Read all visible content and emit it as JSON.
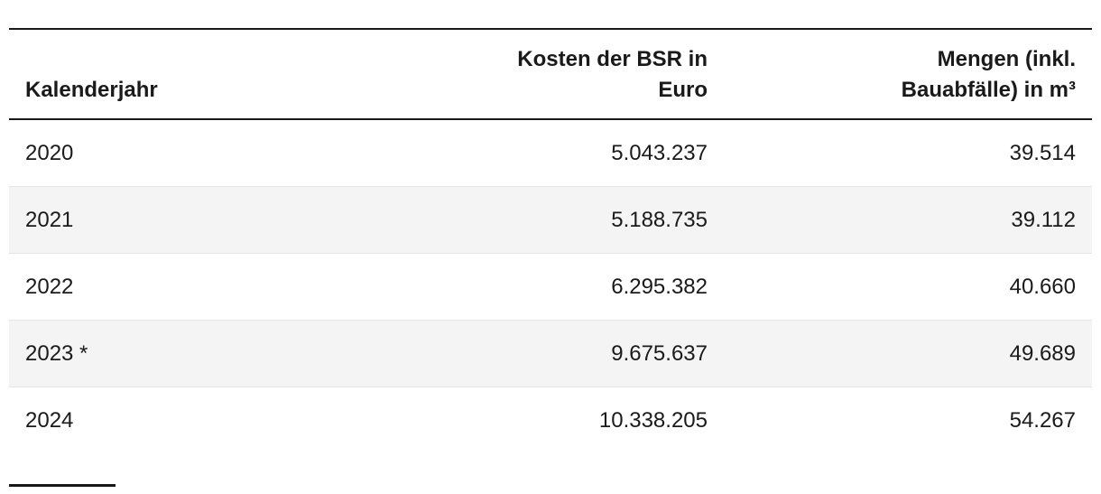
{
  "table": {
    "columns": [
      {
        "label": "Kalenderjahr",
        "align": "left"
      },
      {
        "label": "Kosten der BSR in\nEuro",
        "align": "right"
      },
      {
        "label": "Mengen (inkl.\nBauabfälle) in m³",
        "align": "right"
      }
    ],
    "rows": [
      [
        "2020",
        "5.043.237",
        "39.514"
      ],
      [
        "2021",
        "5.188.735",
        "39.112"
      ],
      [
        "2022",
        "6.295.382",
        "40.660"
      ],
      [
        "2023 *",
        "9.675.637",
        "49.689"
      ],
      [
        "2024",
        "10.338.205",
        "54.267"
      ]
    ]
  },
  "chart_data": {
    "type": "table",
    "title": "",
    "columns": [
      "Kalenderjahr",
      "Kosten der BSR in Euro",
      "Mengen (inkl. Bauabfälle) in m³"
    ],
    "rows": [
      [
        "2020",
        "5.043.237",
        "39.514"
      ],
      [
        "2021",
        "5.188.735",
        "39.112"
      ],
      [
        "2022",
        "6.295.382",
        "40.660"
      ],
      [
        "2023 *",
        "9.675.637",
        "49.689"
      ],
      [
        "2024",
        "10.338.205",
        "54.267"
      ]
    ],
    "series": [
      {
        "name": "Kosten der BSR in Euro",
        "values": [
          5043237,
          5188735,
          6295382,
          9675637,
          10338205
        ]
      },
      {
        "name": "Mengen (inkl. Bauabfälle) in m³",
        "values": [
          39514,
          39112,
          40660,
          49689,
          54267
        ]
      }
    ],
    "categories": [
      "2020",
      "2021",
      "2022",
      "2023 *",
      "2024"
    ],
    "layout_hints": {
      "zebra_striping": true,
      "number_alignment": "right",
      "heavy_rules": [
        "above header",
        "below header"
      ]
    }
  },
  "colors": {
    "text": "#1a1a1a",
    "heavy_rule": "#191919",
    "row_divider": "#e4e4e4",
    "zebra_row_background": "#f4f4f4",
    "background": "#ffffff"
  }
}
